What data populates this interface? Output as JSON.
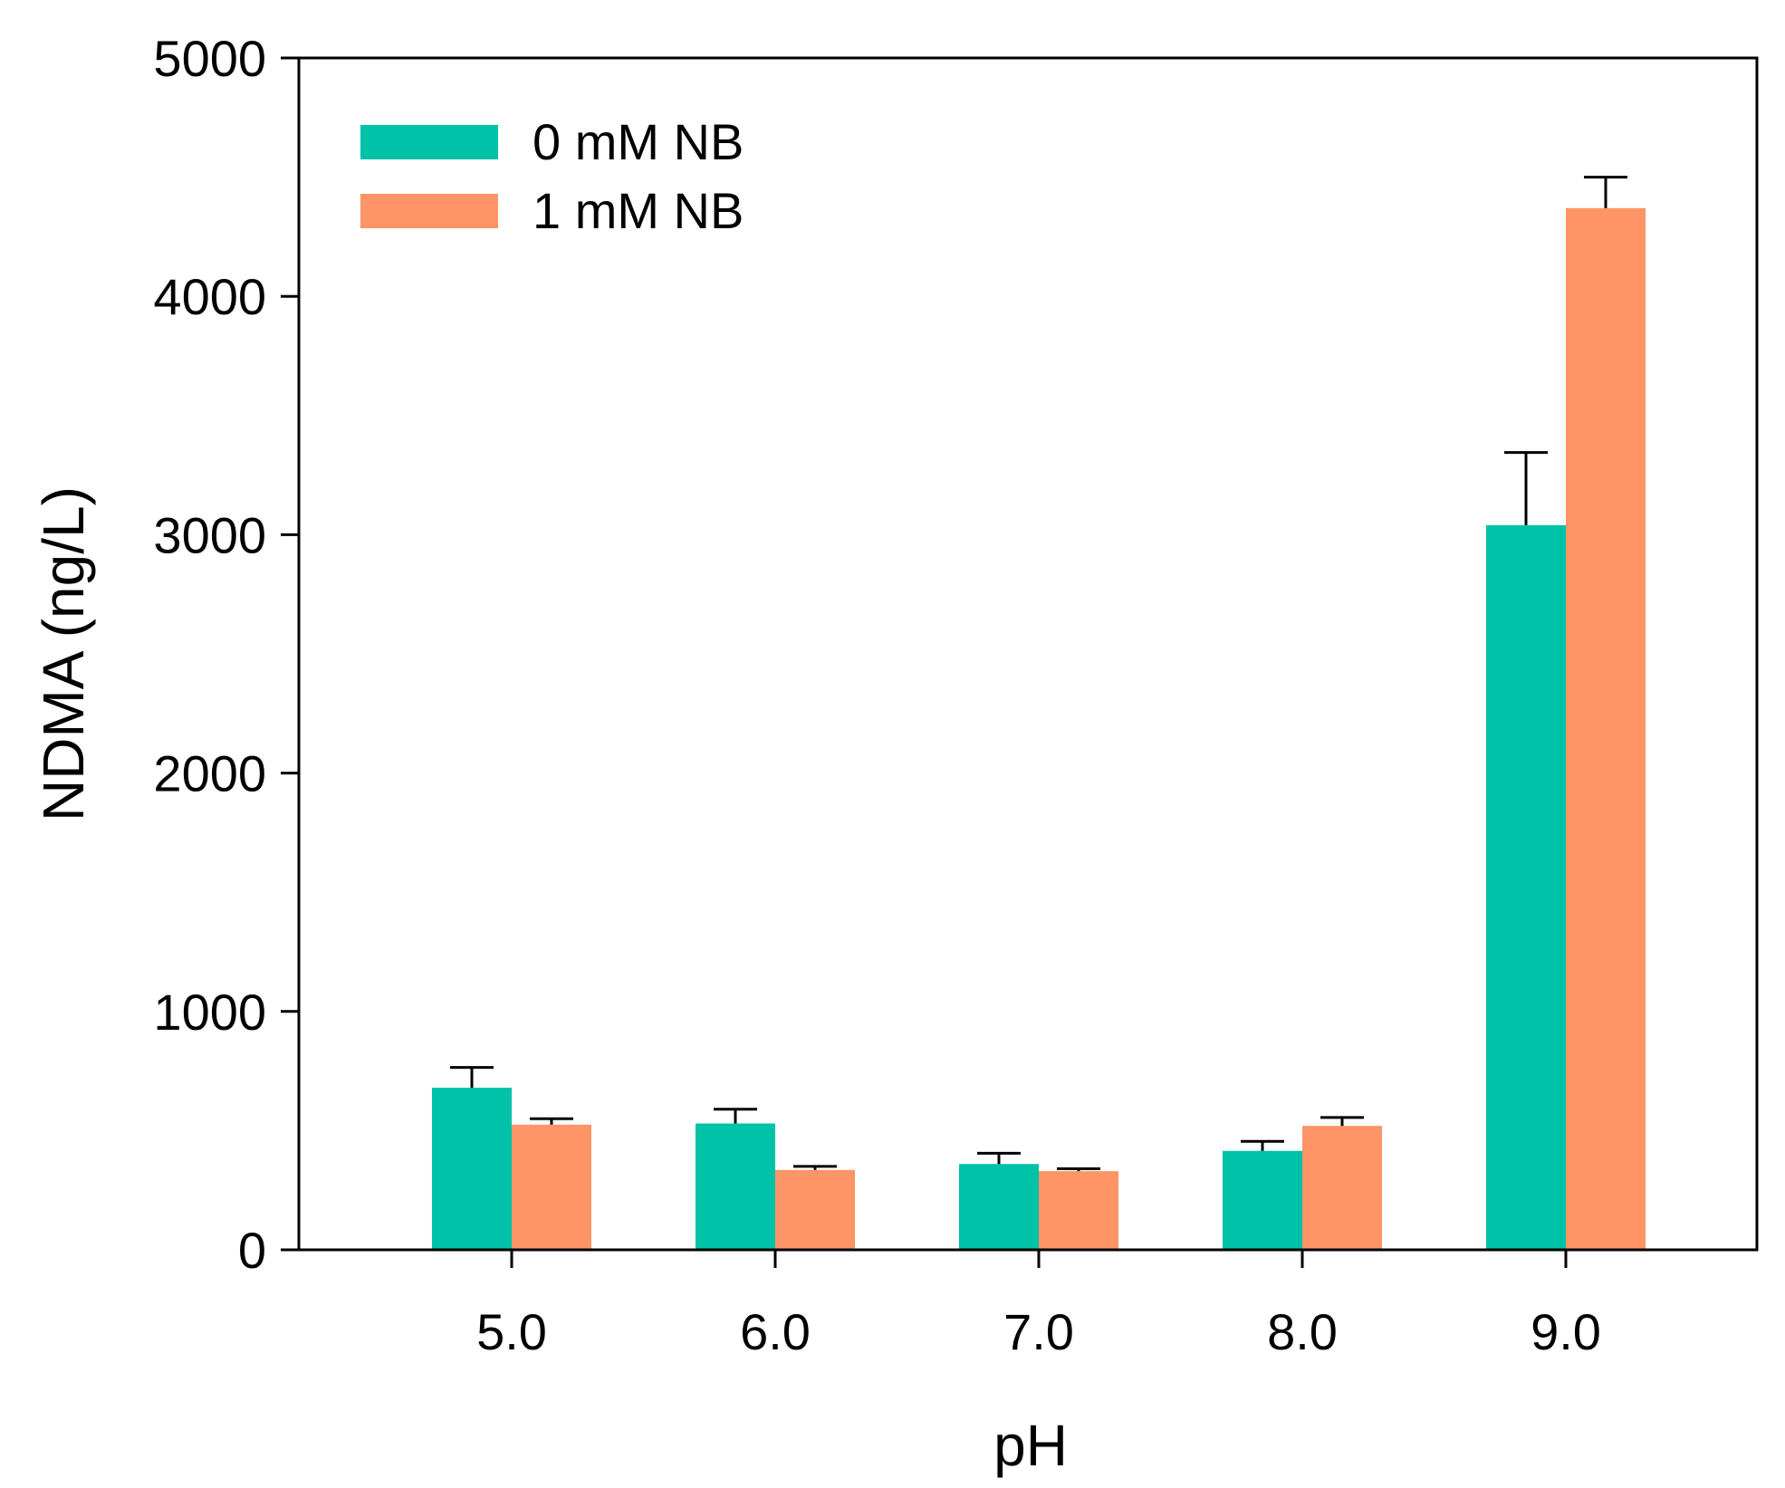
{
  "chart_data": {
    "type": "bar",
    "title": "",
    "xlabel": "pH",
    "ylabel": "NDMA (ng/L)",
    "categories": [
      "5.0",
      "6.0",
      "7.0",
      "8.0",
      "9.0"
    ],
    "ylim": [
      0,
      5000
    ],
    "yticks": [
      "0",
      "1000",
      "2000",
      "3000",
      "4000",
      "5000"
    ],
    "grid": false,
    "legend_position": "top-left",
    "series": [
      {
        "name": "0 mM NB",
        "color": "#00C2A8",
        "values": [
          680,
          530,
          360,
          415,
          3040
        ],
        "errors": [
          85,
          60,
          45,
          40,
          305
        ]
      },
      {
        "name": "1 mM NB",
        "color": "#FF9466",
        "values": [
          525,
          335,
          330,
          520,
          4370
        ],
        "errors": [
          25,
          15,
          10,
          35,
          130
        ]
      }
    ]
  }
}
